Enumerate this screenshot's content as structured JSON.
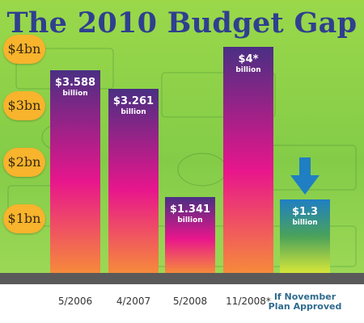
{
  "chart_data": {
    "type": "bar",
    "title": "The 2010 Budget Gap",
    "categories": [
      "5/2006",
      "4/2007",
      "5/2008",
      "11/2008*",
      "If November Plan Approved"
    ],
    "values": [
      3.588,
      3.261,
      1.341,
      4,
      1.3
    ],
    "data_labels": [
      {
        "value": "$3.588",
        "unit": "billion"
      },
      {
        "value": "$3.261",
        "unit": "billion"
      },
      {
        "value": "$1.341",
        "unit": "billion"
      },
      {
        "value": "$4*",
        "unit": "billion"
      },
      {
        "value": "$1.3",
        "unit": "billion"
      }
    ],
    "ytick_values": [
      1,
      2,
      3,
      4
    ],
    "ytick_labels": [
      "$1bn",
      "$2bn",
      "$3bn",
      "$4bn"
    ],
    "ylim": [
      0,
      4.6
    ],
    "highlight_index": 4,
    "arrow_icon": "down-arrow-icon",
    "grid": false,
    "xlabel": "",
    "ylabel": "",
    "colors": {
      "title": "#2f3f8f",
      "bar_top": "#4a2f83",
      "bar_mid": "#e8168c",
      "bar_bottom": "#f68a3b",
      "highlight_top": "#1f7fc2",
      "highlight_mid": "#4aa25a",
      "highlight_bottom": "#d7e63a",
      "arrow": "#1f7fc2",
      "ytick_badge": "#f7b42c",
      "baseline": "#5a5a5a",
      "background": "#8ed14a"
    }
  }
}
